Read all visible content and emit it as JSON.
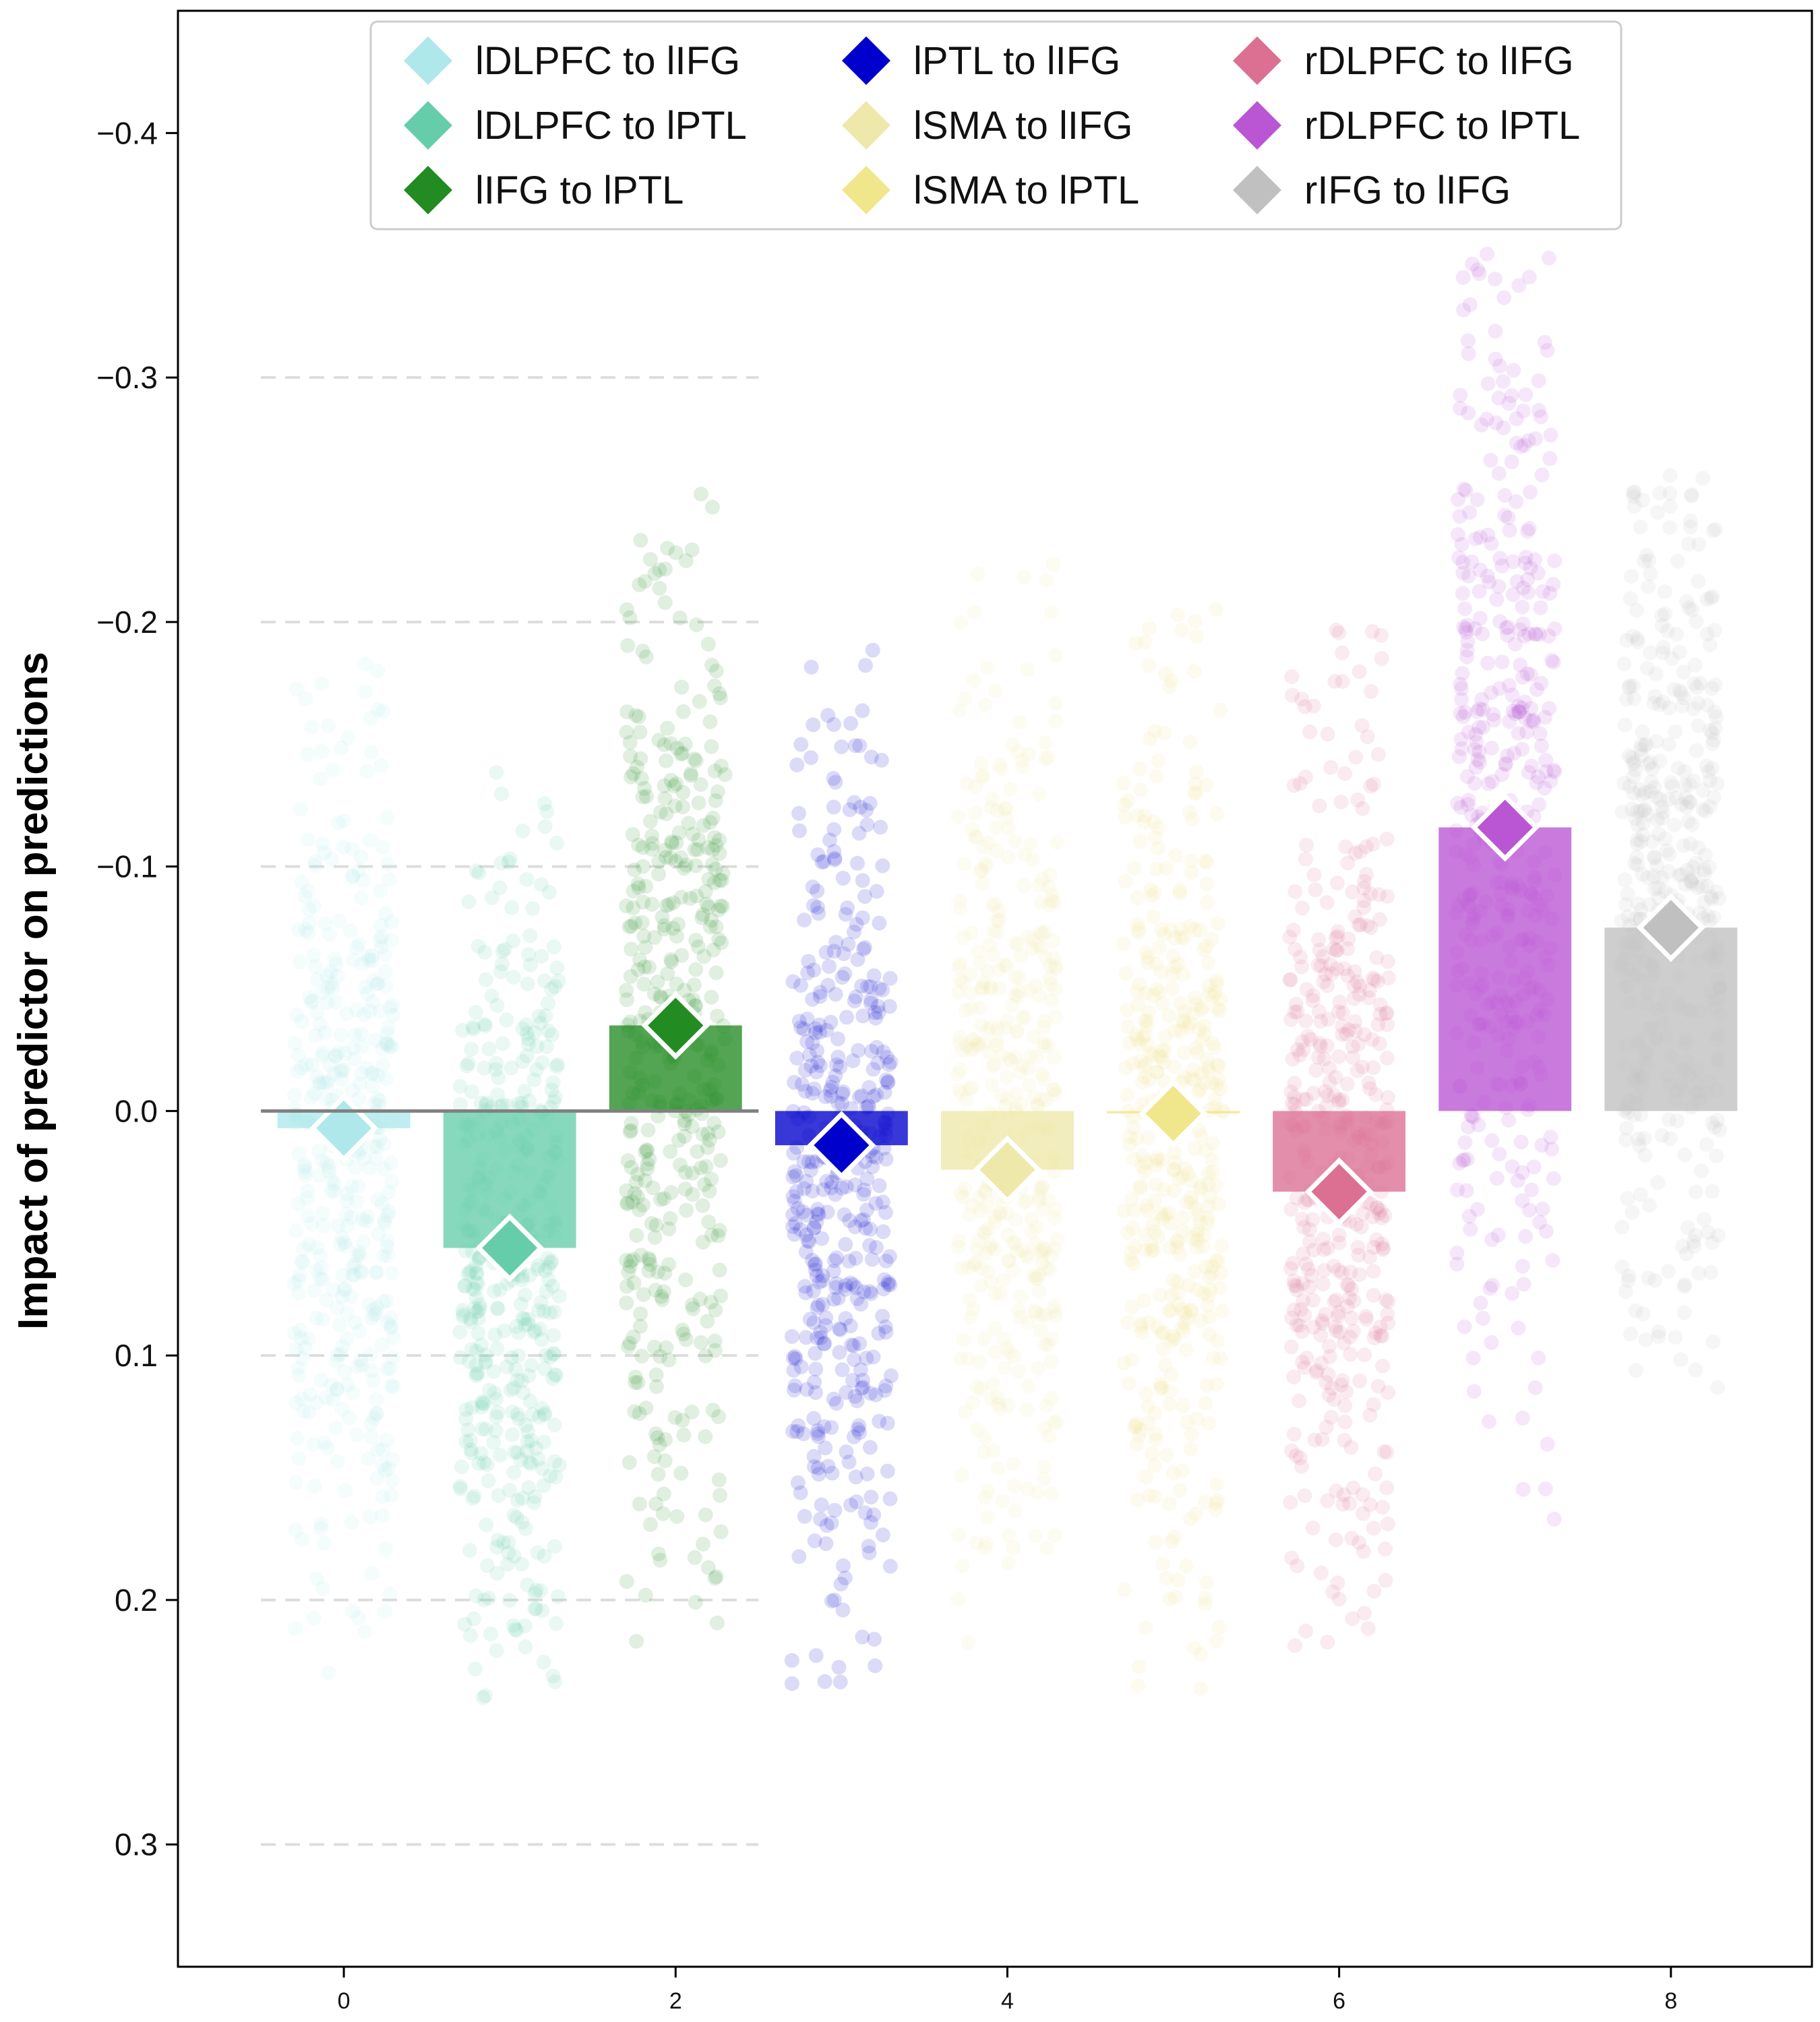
{
  "chart_data": {
    "type": "bar",
    "title": "",
    "xlabel": "",
    "ylabel": "Impact of predictor on predictions",
    "y_inverted": true,
    "xlim": [
      -1,
      8.85
    ],
    "ylim": [
      -0.45,
      0.35
    ],
    "x_ticks": [
      0,
      2,
      4,
      6,
      8
    ],
    "x_tick_labels": [
      "0",
      "2",
      "4",
      "6",
      "8"
    ],
    "y_ticks": [
      -0.4,
      -0.3,
      -0.2,
      -0.1,
      0.0,
      0.1,
      0.2,
      0.3
    ],
    "y_tick_labels": [
      "−0.4",
      "−0.3",
      "−0.2",
      "−0.1",
      "0.0",
      "0.1",
      "0.2",
      "0.3"
    ],
    "grid": "dashed horizontal lines at ±0.1, ±0.2, ±0.3 spanning x -0.5 to 2.5",
    "legend_position": "top-center",
    "categories": [
      0,
      1,
      2,
      3,
      4,
      5,
      6,
      7,
      8
    ],
    "series": [
      {
        "name": "lDLPFC to lIFG",
        "x": 0,
        "mean": 0.007,
        "spread_min": -0.19,
        "spread_max": 0.23,
        "color": "#aee8ea"
      },
      {
        "name": "lDLPFC to lPTL",
        "x": 1,
        "mean": 0.056,
        "spread_min": -0.145,
        "spread_max": 0.24,
        "color": "#66cdaa"
      },
      {
        "name": "lIFG to lPTL",
        "x": 2,
        "mean": -0.035,
        "spread_min": -0.255,
        "spread_max": 0.22,
        "color": "#228b22"
      },
      {
        "name": "lPTL to lIFG",
        "x": 3,
        "mean": 0.014,
        "spread_min": -0.19,
        "spread_max": 0.24,
        "color": "#0000cd"
      },
      {
        "name": "lSMA to lIFG",
        "x": 4,
        "mean": 0.024,
        "spread_min": -0.225,
        "spread_max": 0.22,
        "color": "#eee8aa"
      },
      {
        "name": "lSMA to lPTL",
        "x": 5,
        "mean": 0.001,
        "spread_min": -0.21,
        "spread_max": 0.25,
        "color": "#f0e68c"
      },
      {
        "name": "rDLPFC to lIFG",
        "x": 6,
        "mean": 0.033,
        "spread_min": -0.205,
        "spread_max": 0.22,
        "color": "#db7093"
      },
      {
        "name": "rDLPFC to lPTL",
        "x": 7,
        "mean": -0.116,
        "spread_min": -0.355,
        "spread_max": 0.17,
        "color": "#ba55d3"
      },
      {
        "name": "rIFG to lIFG",
        "x": 8,
        "mean": -0.075,
        "spread_min": -0.26,
        "spread_max": 0.13,
        "color": "#c0c0c0"
      }
    ],
    "zero_line_color": "#808080"
  }
}
